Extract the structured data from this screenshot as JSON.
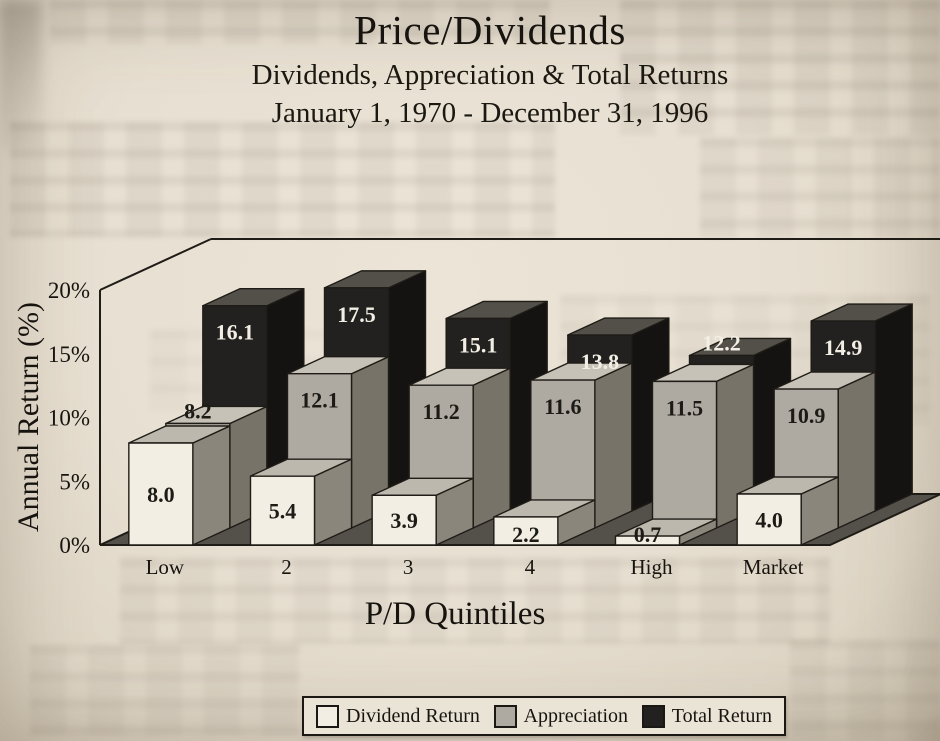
{
  "page": {
    "background_color": "#e7dfd1",
    "media": "scanned book page"
  },
  "chart": {
    "title": "Price/Dividends",
    "subtitle1": "Dividends, Appreciation & Total Returns",
    "subtitle2": "January 1, 1970 - December 31, 1996",
    "y_axis_label": "Annual Return (%)",
    "x_axis_label": "P/D Quintiles"
  },
  "chart_data": {
    "type": "bar",
    "projection": "3d",
    "title": "Price/Dividends",
    "subtitle": "Dividends, Appreciation & Total Returns, January 1, 1970 - December 31, 1996",
    "xlabel": "P/D Quintiles",
    "ylabel": "Annual Return (%)",
    "categories": [
      "Low",
      "2",
      "3",
      "4",
      "High",
      "Market"
    ],
    "series": [
      {
        "name": "Dividend Return",
        "color": "#f2eee3",
        "color_top": "#bdb8ae",
        "color_side": "#8b867c",
        "values": [
          8.0,
          5.4,
          3.9,
          2.2,
          0.7,
          4.0
        ]
      },
      {
        "name": "Appreciation",
        "color": "#aeaaa1",
        "color_top": "#c6c2b8",
        "color_side": "#787369",
        "values": [
          8.2,
          12.1,
          11.2,
          11.6,
          11.5,
          10.9
        ]
      },
      {
        "name": "Total Return",
        "color": "#232120",
        "color_top": "#525049",
        "color_side": "#141311",
        "values": [
          16.1,
          17.5,
          15.1,
          13.8,
          12.2,
          14.9
        ]
      }
    ],
    "ylim": [
      0,
      20
    ],
    "yticks": [
      "0%",
      "5%",
      "10%",
      "15%",
      "20%"
    ],
    "grid": false,
    "legend_position": "bottom",
    "colors": {
      "floor": "#54514a",
      "outline": "#1f1c17",
      "label_dark": "#1d1b16",
      "label_light": "#f2eee4"
    }
  }
}
